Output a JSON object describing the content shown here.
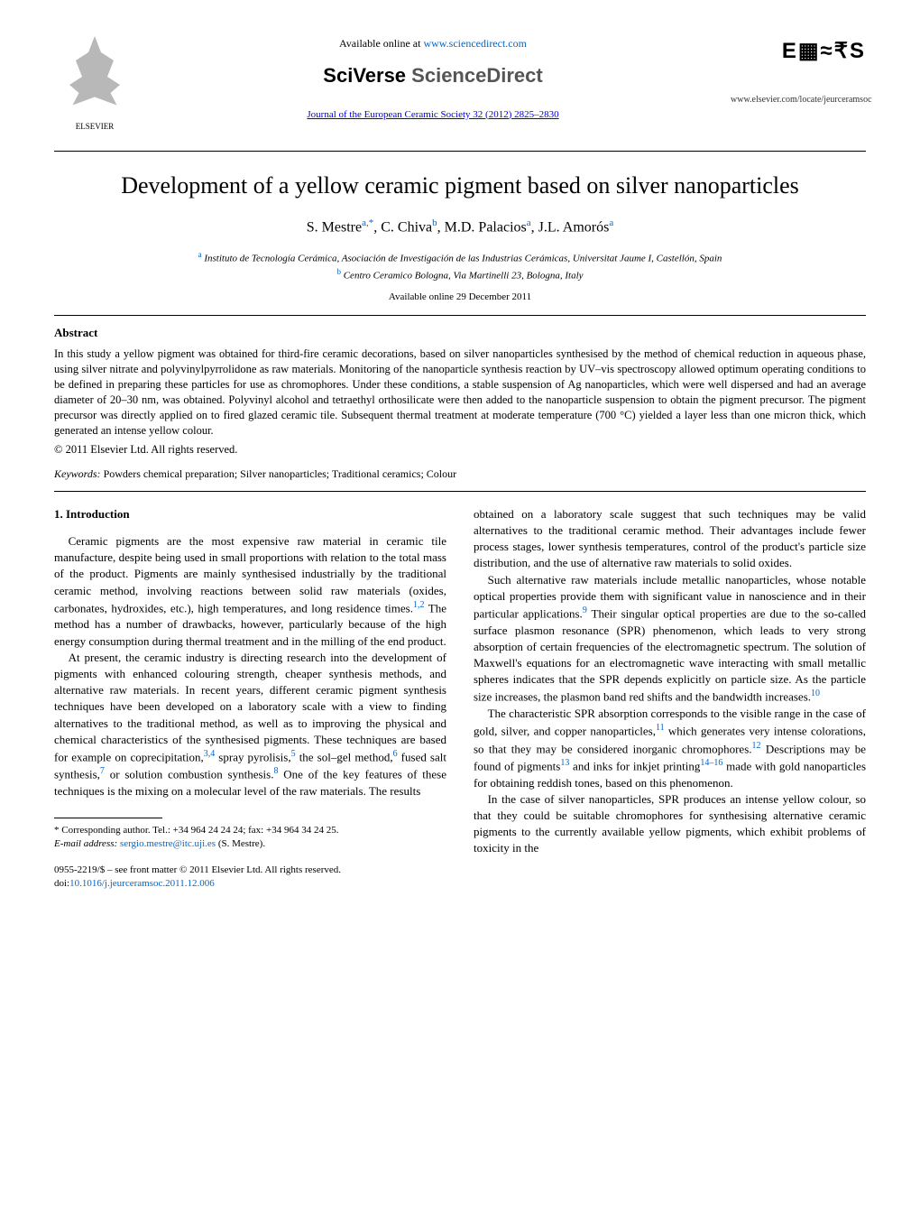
{
  "header": {
    "elsevier_label": "ELSEVIER",
    "available_online_prefix": "Available online at ",
    "available_online_url": "www.sciencedirect.com",
    "platform_brand_1": "SciVerse ",
    "platform_brand_2": "ScienceDirect",
    "journal_reference": "Journal of the European Ceramic Society 32 (2012) 2825–2830",
    "journal_logo_text": "E▦≈₹S",
    "journal_url": "www.elsevier.com/locate/jeurceramsoc"
  },
  "article": {
    "title": "Development of a yellow ceramic pigment based on silver nanoparticles",
    "authors_html": "S. Mestre",
    "author_sup_1": "a,",
    "author_sup_star": "*",
    "author_2": ", C. Chiva",
    "author_sup_2": "b",
    "author_3": ", M.D. Palacios",
    "author_sup_3": "a",
    "author_4": ", J.L. Amorós",
    "author_sup_4": "a",
    "affiliation_a_sup": "a",
    "affiliation_a": " Instituto de Tecnología Cerámica, Asociación de Investigación de las Industrias Cerámicas, Universitat Jaume I, Castellón, Spain",
    "affiliation_b_sup": "b",
    "affiliation_b": " Centro Ceramico Bologna, Via Martinelli 23, Bologna, Italy",
    "available_date": "Available online 29 December 2011"
  },
  "abstract": {
    "heading": "Abstract",
    "text": "In this study a yellow pigment was obtained for third-fire ceramic decorations, based on silver nanoparticles synthesised by the method of chemical reduction in aqueous phase, using silver nitrate and polyvinylpyrrolidone as raw materials. Monitoring of the nanoparticle synthesis reaction by UV–vis spectroscopy allowed optimum operating conditions to be defined in preparing these particles for use as chromophores. Under these conditions, a stable suspension of Ag nanoparticles, which were well dispersed and had an average diameter of 20–30 nm, was obtained. Polyvinyl alcohol and tetraethyl orthosilicate were then added to the nanoparticle suspension to obtain the pigment precursor. The pigment precursor was directly applied on to fired glazed ceramic tile. Subsequent thermal treatment at moderate temperature (700 °C) yielded a layer less than one micron thick, which generated an intense yellow colour.",
    "copyright": "© 2011 Elsevier Ltd. All rights reserved."
  },
  "keywords": {
    "label": "Keywords:",
    "text": " Powders chemical preparation; Silver nanoparticles; Traditional ceramics; Colour"
  },
  "body": {
    "section_heading": "1.  Introduction",
    "left_p1_a": "Ceramic pigments are the most expensive raw material in ceramic tile manufacture, despite being used in small proportions with relation to the total mass of the product. Pigments are mainly synthesised industrially by the traditional ceramic method, involving reactions between solid raw materials (oxides, carbonates, hydroxides, etc.), high temperatures, and long residence times.",
    "left_p1_ref1": "1,2",
    "left_p1_b": " The method has a number of drawbacks, however, particularly because of the high energy consumption during thermal treatment and in the milling of the end product.",
    "left_p2_a": "At present, the ceramic industry is directing research into the development of pigments with enhanced colouring strength, cheaper synthesis methods, and alternative raw materials. In recent years, different ceramic pigment synthesis techniques have been developed on a laboratory scale with a view to finding alternatives to the traditional method, as well as to improving the physical and chemical characteristics of the synthesised pigments. These techniques are based for example on coprecipitation,",
    "left_p2_ref34": "3,4",
    "left_p2_b": " spray pyrolisis,",
    "left_p2_ref5": "5",
    "left_p2_c": " the sol–gel method,",
    "left_p2_ref6": "6",
    "left_p2_d": " fused salt synthesis,",
    "left_p2_ref7": "7",
    "left_p2_e": " or solution combustion synthesis.",
    "left_p2_ref8": "8",
    "left_p2_f": " One of the key features of these techniques is the mixing on a molecular level of the raw materials. The results",
    "right_p1": "obtained on a laboratory scale suggest that such techniques may be valid alternatives to the traditional ceramic method. Their advantages include fewer process stages, lower synthesis temperatures, control of the product's particle size distribution, and the use of alternative raw materials to solid oxides.",
    "right_p2_a": "Such alternative raw materials include metallic nanoparticles, whose notable optical properties provide them with significant value in nanoscience and in their particular applications.",
    "right_p2_ref9": "9",
    "right_p2_b": " Their singular optical properties are due to the so-called surface plasmon resonance (SPR) phenomenon, which leads to very strong absorption of certain frequencies of the electromagnetic spectrum. The solution of Maxwell's equations for an electromagnetic wave interacting with small metallic spheres indicates that the SPR depends explicitly on particle size. As the particle size increases, the plasmon band red shifts and the bandwidth increases.",
    "right_p2_ref10": "10",
    "right_p3_a": "The characteristic SPR absorption corresponds to the visible range in the case of gold, silver, and copper nanoparticles,",
    "right_p3_ref11": "11",
    "right_p3_b": " which generates very intense colorations, so that they may be considered inorganic chromophores.",
    "right_p3_ref12": "12",
    "right_p3_c": " Descriptions may be found of pigments",
    "right_p3_ref13": "13",
    "right_p3_d": " and inks for inkjet printing",
    "right_p3_ref1416": "14–16",
    "right_p3_e": " made with gold nanoparticles for obtaining reddish tones, based on this phenomenon.",
    "right_p4": "In the case of silver nanoparticles, SPR produces an intense yellow colour, so that they could be suitable chromophores for synthesising alternative ceramic pigments to the currently available yellow pigments, which exhibit problems of toxicity in the"
  },
  "footnote": {
    "star": "*",
    "corr_label": " Corresponding author. Tel.: +34 964 24 24 24; fax: +34 964 34 24 25.",
    "email_label": "E-mail address: ",
    "email": "sergio.mestre@itc.uji.es",
    "email_suffix": " (S. Mestre)."
  },
  "bottom": {
    "issn_line": "0955-2219/$ – see front matter © 2011 Elsevier Ltd. All rights reserved.",
    "doi_prefix": "doi:",
    "doi": "10.1016/j.jeurceramsoc.2011.12.006"
  },
  "colors": {
    "link": "#0066cc",
    "text": "#000000",
    "bg": "#ffffff"
  }
}
